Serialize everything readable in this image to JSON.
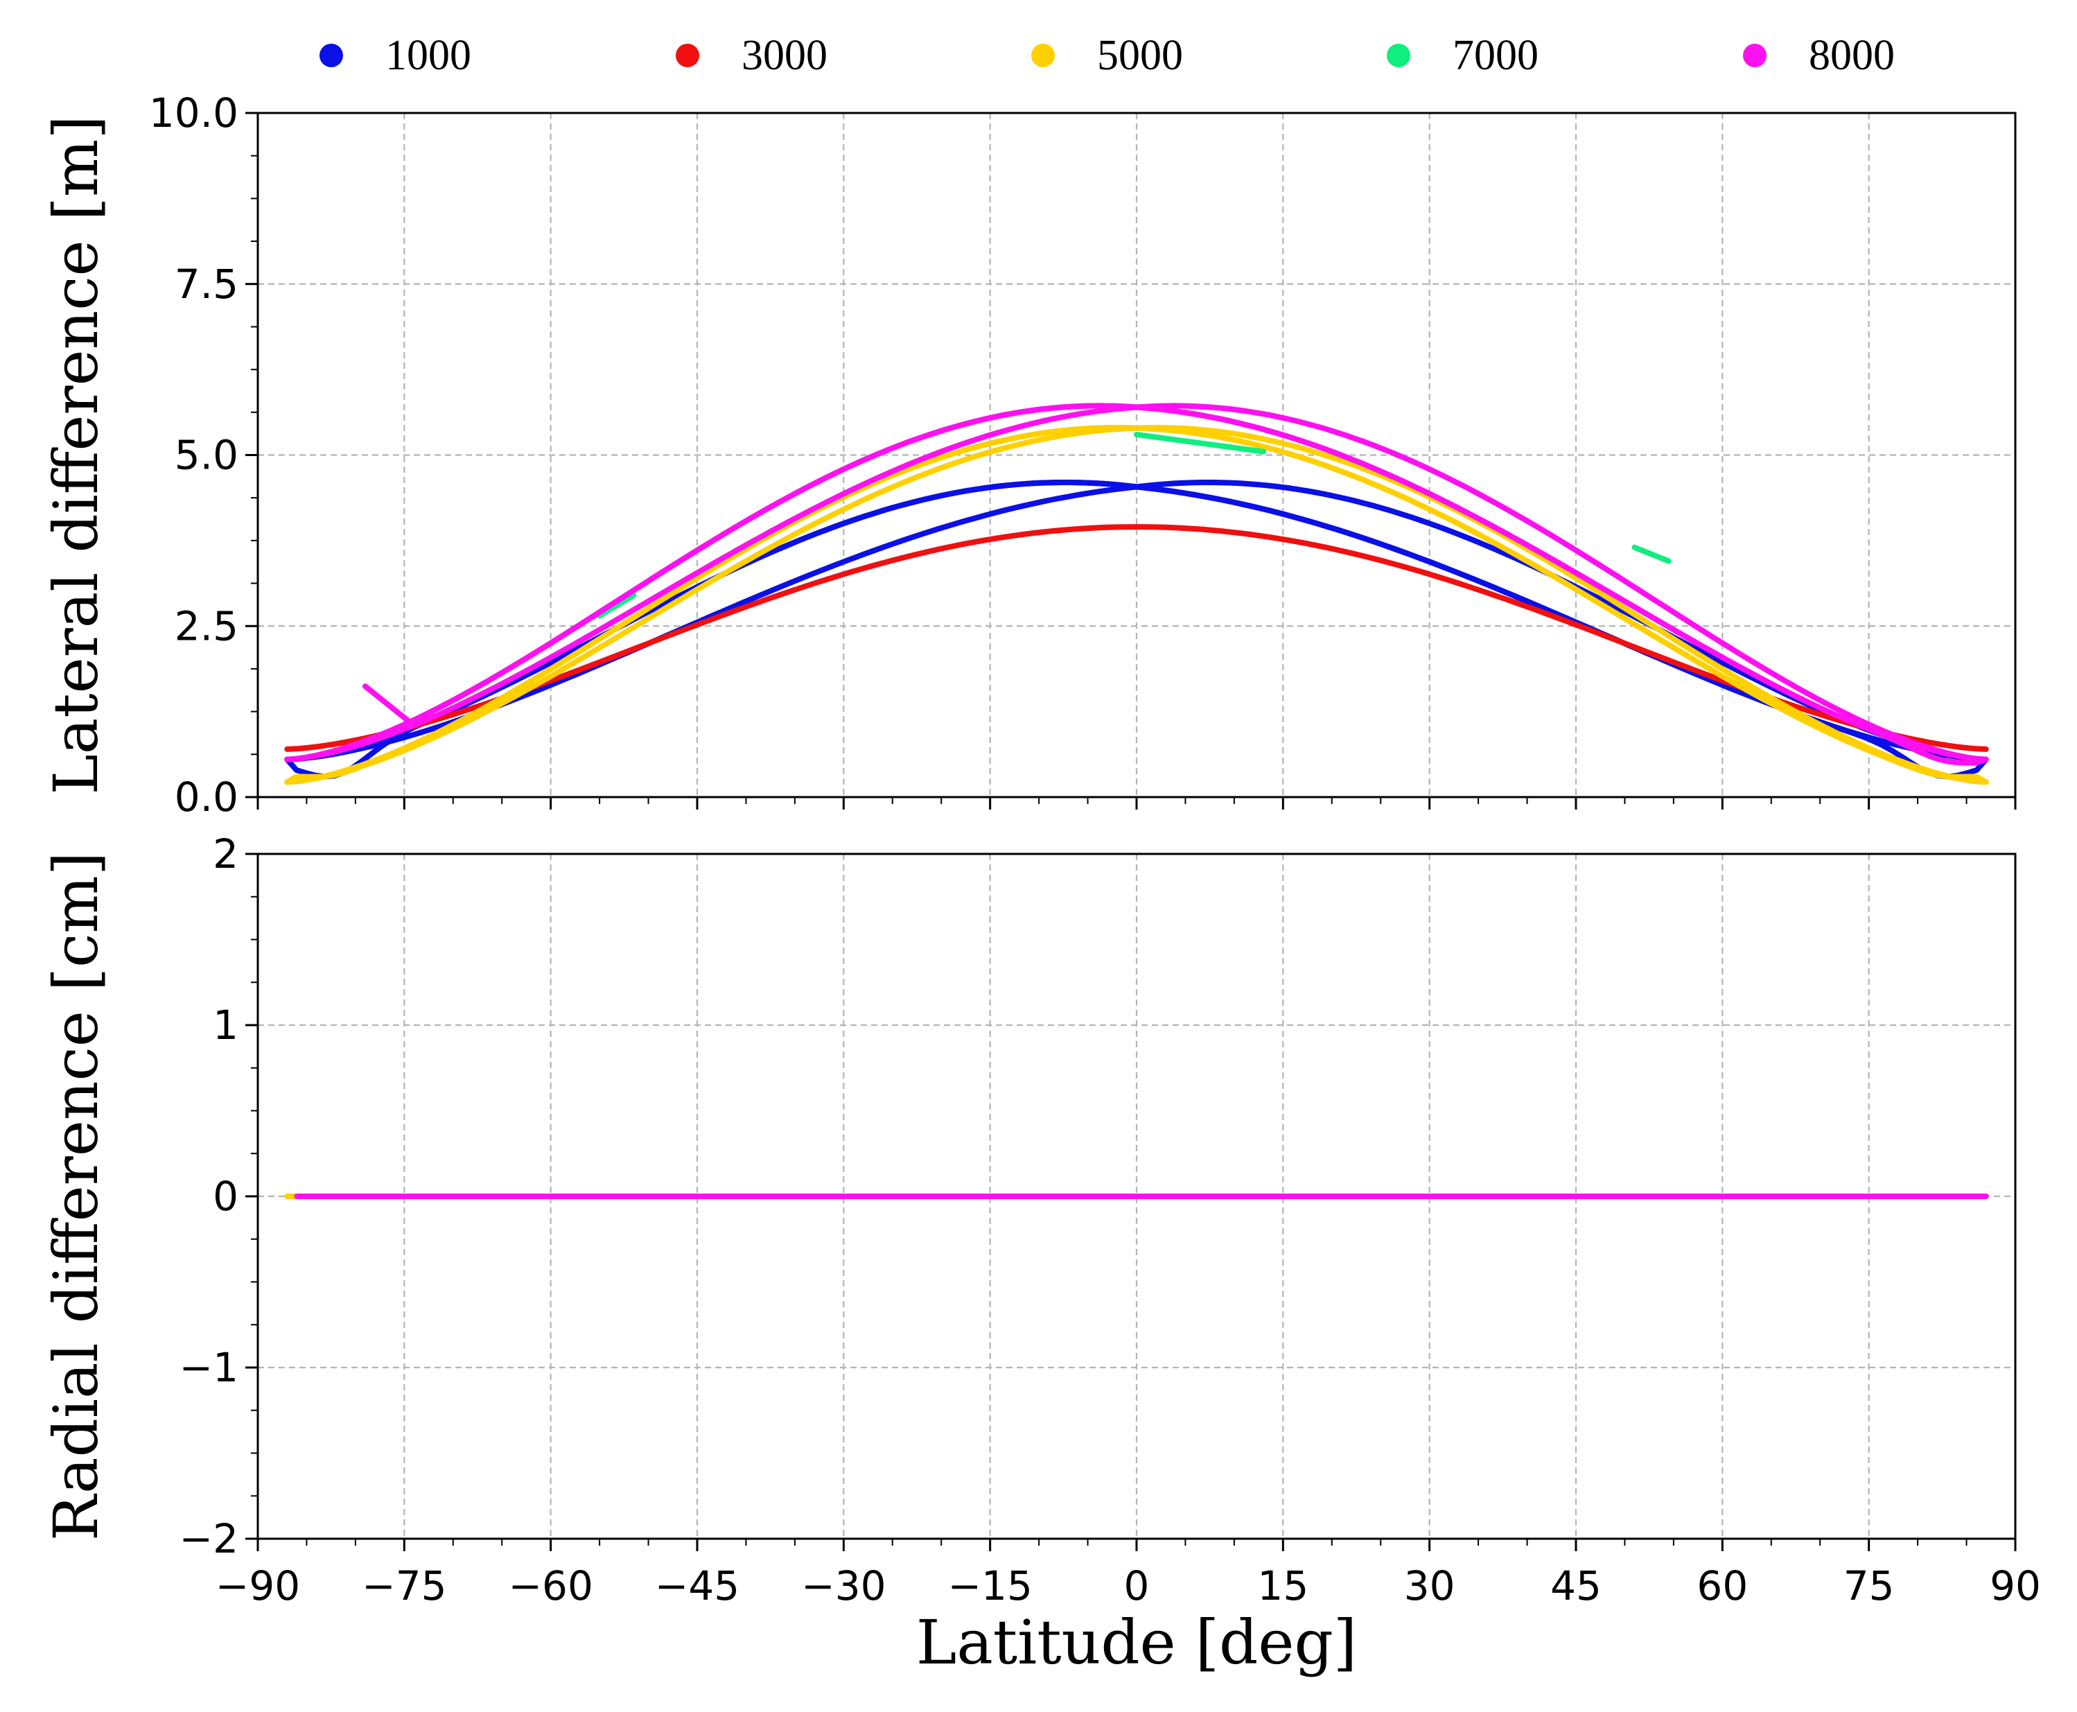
{
  "chart_data": {
    "type": "line",
    "legend": {
      "placement": "top",
      "entries": [
        {
          "label": "1000",
          "color": "#0a10e6"
        },
        {
          "label": "3000",
          "color": "#f01010"
        },
        {
          "label": "5000",
          "color": "#ffd000"
        },
        {
          "label": "7000",
          "color": "#10ee80"
        },
        {
          "label": "8000",
          "color": "#ff10f0"
        }
      ]
    },
    "x": {
      "label": "Latitude [deg]",
      "lim": [
        -90,
        90
      ],
      "ticks": [
        -90,
        -75,
        -60,
        -45,
        -30,
        -15,
        0,
        15,
        30,
        45,
        60,
        75,
        90
      ],
      "tick_labels": [
        "−90",
        "−75",
        "−60",
        "−45",
        "−30",
        "−15",
        "0",
        "15",
        "30",
        "45",
        "60",
        "75",
        "90"
      ],
      "grid": true
    },
    "panels": [
      {
        "id": "lateral",
        "ylabel": "Lateral difference [m]",
        "ylim": [
          0,
          10
        ],
        "yticks": [
          0,
          2.5,
          5,
          7.5,
          10
        ],
        "ytick_labels": [
          "0.0",
          "2.5",
          "5.0",
          "7.5",
          "10.0"
        ],
        "grid": true,
        "series": [
          {
            "name": "1000",
            "color": "#0a10e6",
            "kind": "loop",
            "peak": 4.6,
            "crest_offset": 8,
            "edge": 0.55,
            "lat_max": 87,
            "dip_lat": 83,
            "dip_value": 0.3
          },
          {
            "name": "3000",
            "color": "#f01010",
            "kind": "single",
            "peak": 3.95,
            "edge": 0.7,
            "lat_max": 87
          },
          {
            "name": "5000",
            "color": "#ffd000",
            "kind": "loop",
            "peak": 5.4,
            "crest_offset": 2,
            "edge": 0.22,
            "lat_max": 87,
            "dip_lat": 86,
            "dip_value": 0.3
          },
          {
            "name": "7000",
            "color": "#10ee80",
            "kind": "segments",
            "segments": [
              {
                "lat": [
                  -55,
                  -51.5
                ],
                "value": [
                  2.65,
                  2.95
                ]
              },
              {
                "lat": [
                  0,
                  13
                ],
                "value": [
                  5.3,
                  5.05
                ]
              },
              {
                "lat": [
                  51,
                  54.5
                ],
                "value": [
                  3.65,
                  3.45
                ]
              }
            ]
          },
          {
            "name": "8000",
            "color": "#ff10f0",
            "kind": "loop",
            "peak": 5.72,
            "crest_offset": 4,
            "edge": 0.55,
            "lat_max": 87,
            "dip_lat": 85,
            "dip_value": 0.5,
            "lower_start_lat": -79,
            "lower_start_value": 1.62
          }
        ]
      },
      {
        "id": "radial",
        "ylabel": "Radial difference [cm]",
        "ylim": [
          -2,
          2
        ],
        "yticks": [
          -2,
          -1,
          0,
          1,
          2
        ],
        "ytick_labels": [
          "−2",
          "−1",
          "0",
          "1",
          "2"
        ],
        "grid": true,
        "series": [
          {
            "name": "5000",
            "color": "#ffd000",
            "x": [
              -87,
              87
            ],
            "y": [
              0,
              0
            ]
          },
          {
            "name": "8000",
            "color": "#ff10f0",
            "x": [
              -86,
              87
            ],
            "y": [
              0,
              0
            ]
          }
        ]
      }
    ]
  }
}
